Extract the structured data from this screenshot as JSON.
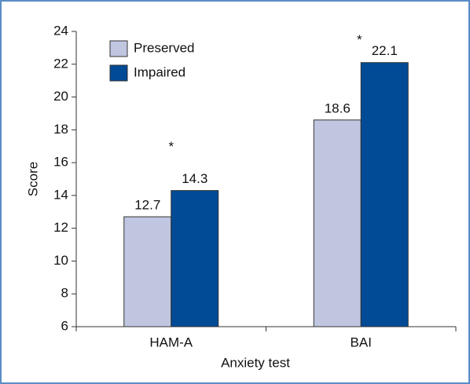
{
  "chart_data": {
    "type": "bar",
    "categories": [
      "HAM-A",
      "BAI"
    ],
    "series": [
      {
        "name": "Preserved",
        "color": "#c0c6e0",
        "values": [
          12.7,
          18.6
        ]
      },
      {
        "name": "Impaired",
        "color": "#004a96",
        "values": [
          14.3,
          22.1
        ]
      }
    ],
    "annotations": [
      "*",
      "*"
    ],
    "xlabel": "Anxiety test",
    "ylabel": "Score",
    "ylim": [
      6,
      24
    ],
    "yticks": [
      6,
      8,
      10,
      12,
      14,
      16,
      18,
      20,
      22,
      24
    ],
    "legend": "upper left"
  }
}
